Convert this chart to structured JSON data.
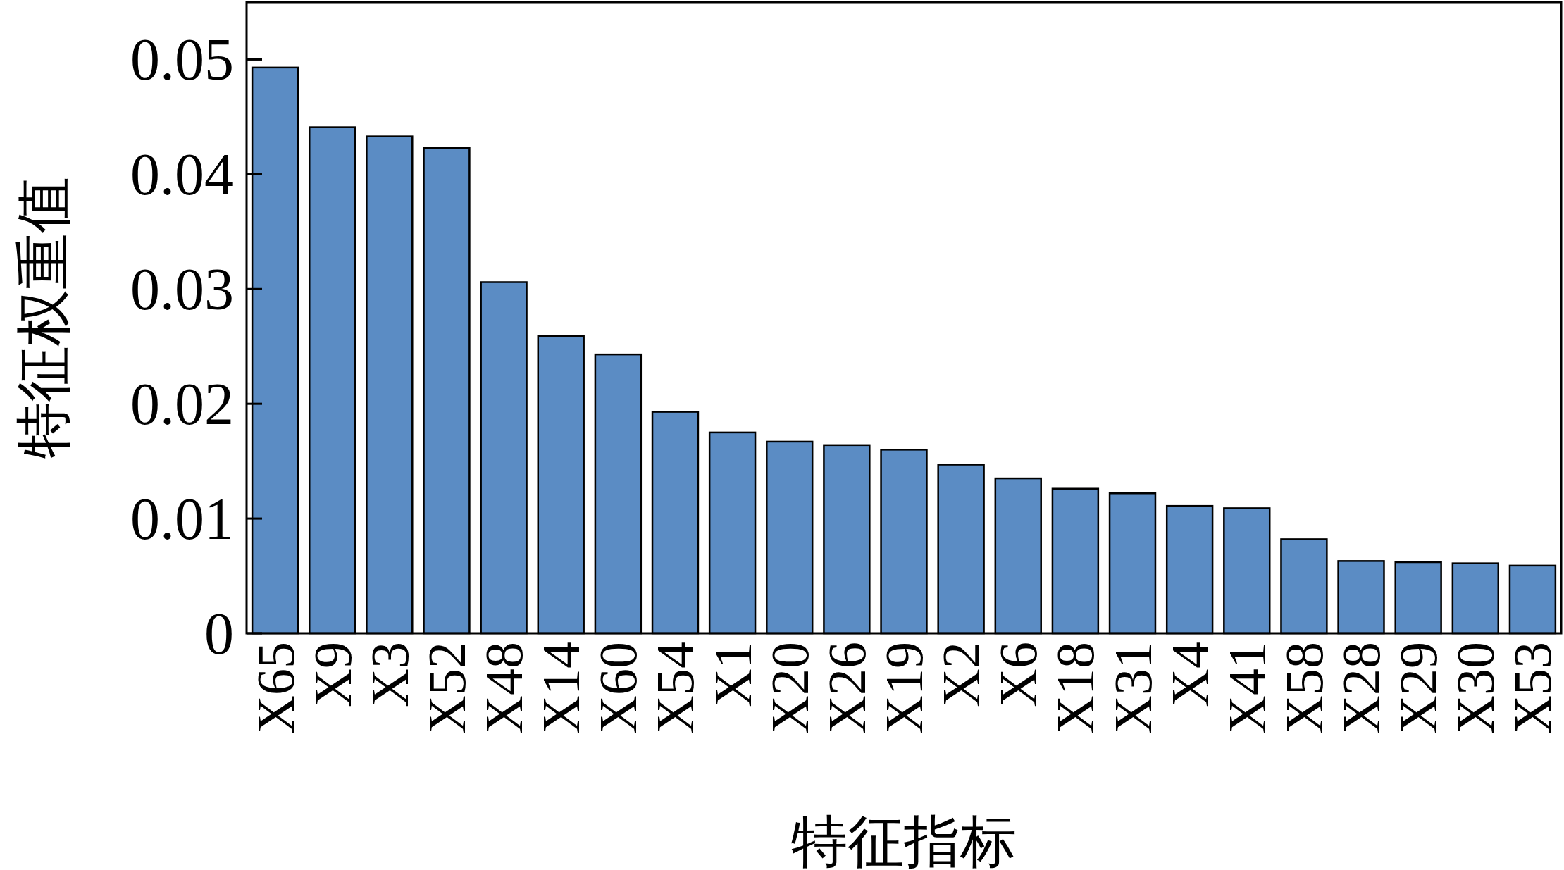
{
  "chart_data": {
    "type": "bar",
    "xlabel": "特征指标",
    "ylabel": "特征权重值",
    "categories": [
      "X65",
      "X9",
      "X3",
      "X52",
      "X48",
      "X14",
      "X60",
      "X54",
      "X1",
      "X20",
      "X26",
      "X19",
      "X2",
      "X6",
      "X18",
      "X31",
      "X4",
      "X41",
      "X58",
      "X28",
      "X29",
      "X30",
      "X53"
    ],
    "values": [
      0.0493,
      0.0441,
      0.0433,
      0.0423,
      0.0306,
      0.0259,
      0.0243,
      0.0193,
      0.0175,
      0.0167,
      0.0164,
      0.016,
      0.0147,
      0.0135,
      0.0126,
      0.0122,
      0.0111,
      0.0109,
      0.0082,
      0.0063,
      0.0062,
      0.0061,
      0.0059
    ],
    "color": "#5b8cc4",
    "ylim": [
      0,
      0.055
    ],
    "yticks": [
      0,
      0.01,
      0.02,
      0.03,
      0.04,
      0.05
    ]
  }
}
